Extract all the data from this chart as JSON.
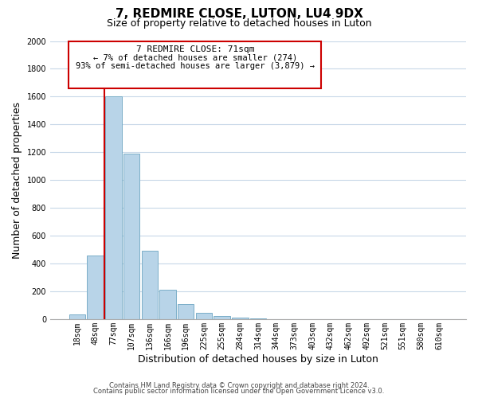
{
  "title": "7, REDMIRE CLOSE, LUTON, LU4 9DX",
  "subtitle": "Size of property relative to detached houses in Luton",
  "xlabel": "Distribution of detached houses by size in Luton",
  "ylabel": "Number of detached properties",
  "bar_labels": [
    "18sqm",
    "48sqm",
    "77sqm",
    "107sqm",
    "136sqm",
    "166sqm",
    "196sqm",
    "225sqm",
    "255sqm",
    "284sqm",
    "314sqm",
    "344sqm",
    "373sqm",
    "403sqm",
    "432sqm",
    "462sqm",
    "492sqm",
    "521sqm",
    "551sqm",
    "580sqm",
    "610sqm"
  ],
  "bar_values": [
    35,
    460,
    1600,
    1190,
    490,
    210,
    110,
    45,
    20,
    10,
    5,
    0,
    0,
    0,
    0,
    0,
    0,
    0,
    0,
    0,
    0
  ],
  "bar_color": "#b8d4e8",
  "bar_edge_color": "#7aaec8",
  "ylim": [
    0,
    2000
  ],
  "yticks": [
    0,
    200,
    400,
    600,
    800,
    1000,
    1200,
    1400,
    1600,
    1800,
    2000
  ],
  "vline_color": "#cc0000",
  "vline_x": 2.0,
  "annotation_title": "7 REDMIRE CLOSE: 71sqm",
  "annotation_line1": "← 7% of detached houses are smaller (274)",
  "annotation_line2": "93% of semi-detached houses are larger (3,879) →",
  "annotation_box_color": "#ffffff",
  "annotation_box_edge_color": "#cc0000",
  "footer1": "Contains HM Land Registry data © Crown copyright and database right 2024.",
  "footer2": "Contains public sector information licensed under the Open Government Licence v3.0.",
  "bg_color": "#ffffff",
  "grid_color": "#c8d8e8",
  "title_fontsize": 11,
  "subtitle_fontsize": 9,
  "tick_fontsize": 7,
  "ylabel_fontsize": 9,
  "xlabel_fontsize": 9,
  "ann_fontsize_title": 8,
  "ann_fontsize_body": 7.5
}
